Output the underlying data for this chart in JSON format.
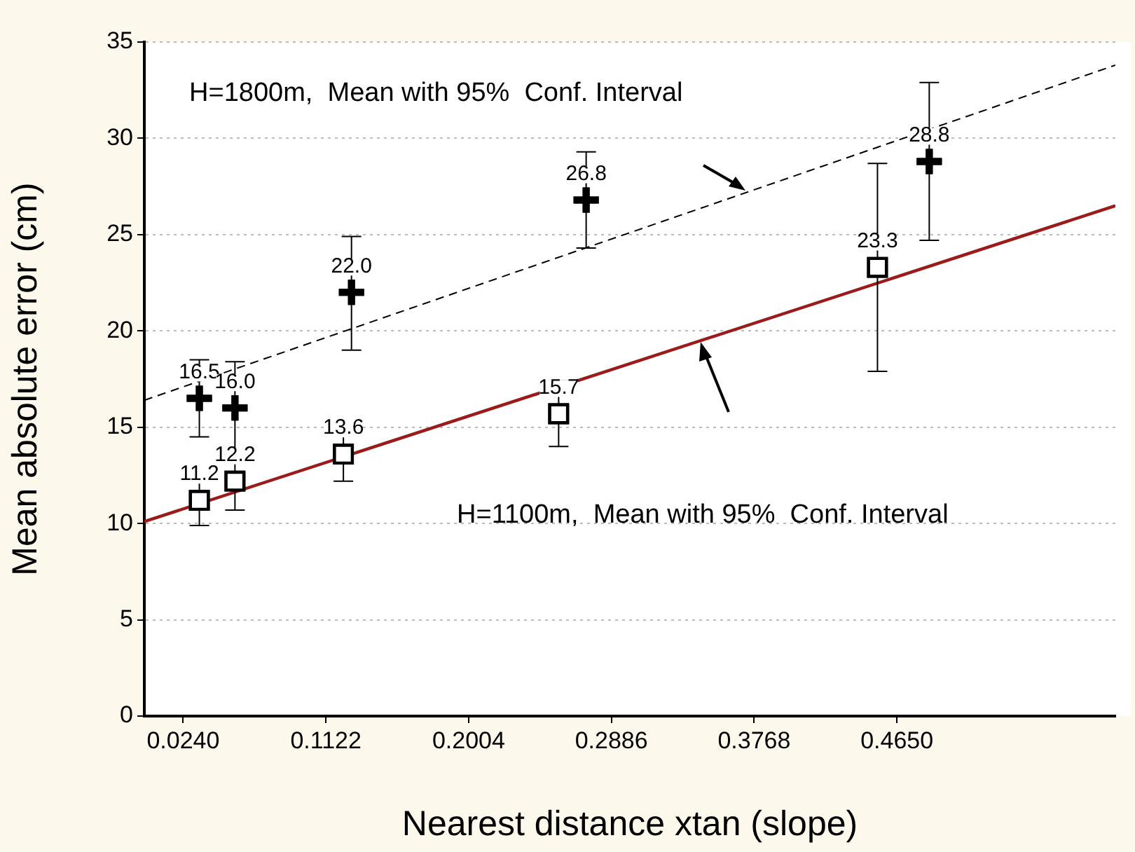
{
  "chart_data": {
    "type": "scatter",
    "xlabel": "Nearest distance xtan (slope)",
    "ylabel": "Mean absolute error (cm)",
    "xlim": [
      0,
      0.6
    ],
    "xticks": [
      {
        "value": 0.024,
        "label": "0.0240"
      },
      0.1122,
      0.2004,
      0.2886,
      0.3768,
      {
        "value": 0.465,
        "label": "0.4650"
      }
    ],
    "ylim": [
      0,
      35
    ],
    "yticks": [
      0,
      5,
      10,
      15,
      20,
      25,
      30,
      35
    ],
    "grid": "y",
    "legend": false,
    "annotations": [
      "H=1800m,  Mean with 95%  Conf. Interval",
      "H=1100m,  Mean with 95%  Conf. Interval"
    ],
    "series": [
      {
        "color": "#000000",
        "marker": "cross",
        "x": [
          0.034,
          0.056,
          0.128,
          0.273,
          0.485
        ],
        "values": [
          16.5,
          16.0,
          22.0,
          26.8,
          28.8
        ],
        "value_labels": [
          "16.5",
          "16.0",
          "22.0",
          "26.8",
          "28.8"
        ],
        "errors": [
          [
            14.5,
            18.5
          ],
          [
            13.6,
            18.4
          ],
          [
            19.0,
            24.9
          ],
          [
            24.3,
            29.3
          ],
          [
            24.7,
            32.9
          ]
        ]
      },
      {
        "color": "#000000",
        "marker": "square",
        "x": [
          0.034,
          0.056,
          0.123,
          0.256,
          0.453
        ],
        "values": [
          11.2,
          12.2,
          13.6,
          15.7,
          23.3
        ],
        "value_labels": [
          "11.2",
          "12.2",
          "13.6",
          "15.7",
          "23.3"
        ],
        "errors": [
          [
            9.9,
            12.5
          ],
          [
            10.7,
            13.7
          ],
          [
            12.2,
            15.0
          ],
          [
            14.0,
            17.4
          ],
          [
            17.9,
            28.7
          ]
        ]
      },
      {
        "type": "line",
        "color": "#000000",
        "line_style": "dashed",
        "marker": "none",
        "x": [
          0,
          0.6
        ],
        "values": [
          16.4,
          33.8
        ]
      },
      {
        "type": "line",
        "color": "#9b1b1b",
        "line_style": "solid",
        "marker": "none",
        "x": [
          0,
          0.6
        ],
        "values": [
          10.1,
          26.5
        ]
      }
    ]
  }
}
